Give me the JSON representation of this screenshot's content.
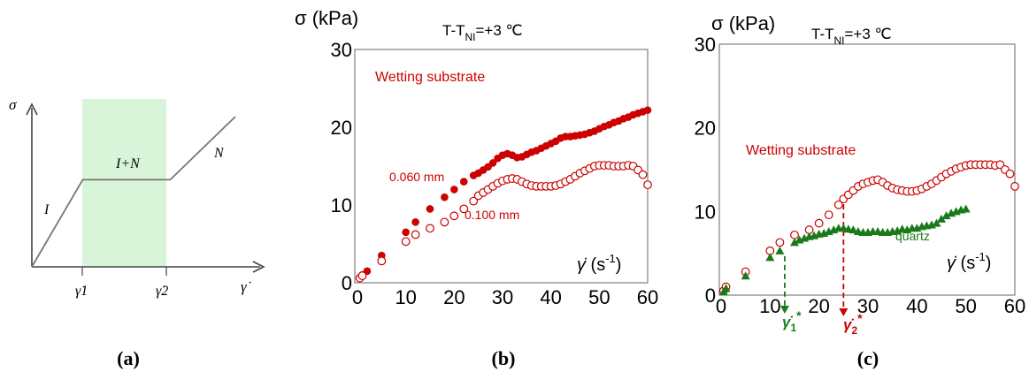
{
  "panel_labels": [
    "(a)",
    "(b)",
    "(c)"
  ],
  "chart_data": [
    {
      "id": "a",
      "type": "line",
      "ylabel": "σ",
      "xlabel": "γ̇",
      "regions": [
        {
          "label": "I",
          "x": [
            0,
            0.25
          ]
        },
        {
          "label": "I+N",
          "x": [
            0.25,
            0.68
          ]
        },
        {
          "label": "N",
          "x": [
            0.68,
            1
          ]
        }
      ],
      "tick_labels": [
        "γ̇1",
        "γ̇2"
      ],
      "highlight_color": "#d9f5d9",
      "series": [
        {
          "values": [
            [
              0,
              0
            ],
            [
              0.25,
              0.58
            ],
            [
              0.68,
              0.58
            ],
            [
              1,
              1
            ]
          ]
        }
      ]
    },
    {
      "id": "b",
      "type": "scatter",
      "ylabel": "σ (kPa)",
      "xlabel": "γ̇ (s⁻¹)",
      "header": "T-T_NI=+3 ℃",
      "xlim": [
        0,
        60
      ],
      "ylim": [
        0,
        30
      ],
      "xticks": [
        0,
        10,
        20,
        30,
        40,
        50,
        60
      ],
      "yticks": [
        0,
        10,
        20,
        30
      ],
      "legend_title": "Wetting substrate",
      "annotations": [
        "0.060 mm",
        "0.100 mm"
      ],
      "series": [
        {
          "name": "0.060 mm",
          "marker": "filled-circle",
          "color": "#cc0000",
          "points": [
            [
              1,
              1.0
            ],
            [
              2,
              1.5
            ],
            [
              5,
              3.5
            ],
            [
              10,
              6.5
            ],
            [
              12,
              7.8
            ],
            [
              15,
              9.5
            ],
            [
              18,
              11
            ],
            [
              20,
              12
            ],
            [
              22,
              13
            ],
            [
              24,
              13.8
            ],
            [
              25,
              14.1
            ],
            [
              26,
              14.5
            ],
            [
              27,
              14.9
            ],
            [
              28,
              15.4
            ],
            [
              29,
              16.0
            ],
            [
              30,
              16.4
            ],
            [
              31,
              16.6
            ],
            [
              32,
              16.4
            ],
            [
              33,
              16.1
            ],
            [
              34,
              16.2
            ],
            [
              35,
              16.5
            ],
            [
              36,
              16.8
            ],
            [
              37,
              17.0
            ],
            [
              38,
              17.3
            ],
            [
              39,
              17.6
            ],
            [
              40,
              17.9
            ],
            [
              41,
              18.2
            ],
            [
              42,
              18.6
            ],
            [
              43,
              18.8
            ],
            [
              44,
              18.8
            ],
            [
              45,
              18.9
            ],
            [
              46,
              19.0
            ],
            [
              47,
              19.1
            ],
            [
              48,
              19.3
            ],
            [
              49,
              19.5
            ],
            [
              50,
              19.8
            ],
            [
              51,
              20.1
            ],
            [
              52,
              20.3
            ],
            [
              53,
              20.6
            ],
            [
              54,
              20.8
            ],
            [
              55,
              21.1
            ],
            [
              56,
              21.3
            ],
            [
              57,
              21.6
            ],
            [
              58,
              21.8
            ],
            [
              59,
              22.0
            ],
            [
              60,
              22.2
            ]
          ]
        },
        {
          "name": "0.100 mm",
          "marker": "open-circle",
          "color": "#cc0000",
          "points": [
            [
              0.5,
              0.6
            ],
            [
              1,
              0.9
            ],
            [
              5,
              2.8
            ],
            [
              10,
              5.3
            ],
            [
              12,
              6.2
            ],
            [
              15,
              7.0
            ],
            [
              18,
              7.8
            ],
            [
              20,
              8.6
            ],
            [
              22,
              9.5
            ],
            [
              24,
              10.5
            ],
            [
              25,
              11.2
            ],
            [
              26,
              11.6
            ],
            [
              27,
              12.0
            ],
            [
              28,
              12.4
            ],
            [
              29,
              12.8
            ],
            [
              30,
              13.1
            ],
            [
              31,
              13.3
            ],
            [
              32,
              13.4
            ],
            [
              33,
              13.3
            ],
            [
              34,
              13.0
            ],
            [
              35,
              12.7
            ],
            [
              36,
              12.5
            ],
            [
              37,
              12.4
            ],
            [
              38,
              12.4
            ],
            [
              39,
              12.4
            ],
            [
              40,
              12.4
            ],
            [
              41,
              12.5
            ],
            [
              42,
              12.7
            ],
            [
              43,
              13.0
            ],
            [
              44,
              13.3
            ],
            [
              45,
              13.7
            ],
            [
              46,
              14.1
            ],
            [
              47,
              14.4
            ],
            [
              48,
              14.7
            ],
            [
              49,
              15.0
            ],
            [
              50,
              15.1
            ],
            [
              51,
              15.1
            ],
            [
              52,
              15.1
            ],
            [
              53,
              15.0
            ],
            [
              54,
              15.0
            ],
            [
              55,
              15.0
            ],
            [
              56,
              15.1
            ],
            [
              57,
              15.0
            ],
            [
              58,
              14.5
            ],
            [
              59,
              13.9
            ],
            [
              60,
              12.6
            ]
          ]
        }
      ]
    },
    {
      "id": "c",
      "type": "scatter",
      "ylabel": "σ (kPa)",
      "xlabel": "γ̇ (s⁻¹)",
      "header": "T-T_NI=+3 ℃",
      "xlim": [
        0,
        60
      ],
      "ylim": [
        0,
        30
      ],
      "xticks": [
        0,
        10,
        20,
        30,
        40,
        50,
        60
      ],
      "yticks": [
        0,
        10,
        20,
        30
      ],
      "annotations": [
        "Wetting substrate",
        "quartz"
      ],
      "critical_rates": [
        {
          "label": "γ̇1*",
          "x": 13,
          "color": "#1a7a1a"
        },
        {
          "label": "γ̇2*",
          "x": 25,
          "color": "#cc0000"
        }
      ],
      "series": [
        {
          "name": "Wetting substrate",
          "marker": "open-circle",
          "color": "#cc0000",
          "points": [
            [
              0.5,
              0.5
            ],
            [
              1,
              1.0
            ],
            [
              5,
              2.8
            ],
            [
              10,
              5.3
            ],
            [
              12,
              6.3
            ],
            [
              15,
              7.2
            ],
            [
              18,
              7.8
            ],
            [
              20,
              8.6
            ],
            [
              22,
              9.6
            ],
            [
              24,
              10.8
            ],
            [
              25,
              11.5
            ],
            [
              26,
              12.0
            ],
            [
              27,
              12.5
            ],
            [
              28,
              13.0
            ],
            [
              29,
              13.3
            ],
            [
              30,
              13.5
            ],
            [
              31,
              13.7
            ],
            [
              32,
              13.8
            ],
            [
              33,
              13.5
            ],
            [
              34,
              13.1
            ],
            [
              35,
              12.8
            ],
            [
              36,
              12.6
            ],
            [
              37,
              12.5
            ],
            [
              38,
              12.4
            ],
            [
              39,
              12.4
            ],
            [
              40,
              12.5
            ],
            [
              41,
              12.7
            ],
            [
              42,
              13.0
            ],
            [
              43,
              13.3
            ],
            [
              44,
              13.7
            ],
            [
              45,
              14.1
            ],
            [
              46,
              14.5
            ],
            [
              47,
              14.8
            ],
            [
              48,
              15.1
            ],
            [
              49,
              15.3
            ],
            [
              50,
              15.5
            ],
            [
              51,
              15.6
            ],
            [
              52,
              15.6
            ],
            [
              53,
              15.6
            ],
            [
              54,
              15.6
            ],
            [
              55,
              15.6
            ],
            [
              56,
              15.5
            ],
            [
              57,
              15.6
            ],
            [
              58,
              15.0
            ],
            [
              59,
              14.5
            ],
            [
              60,
              13.0
            ]
          ]
        },
        {
          "name": "quartz",
          "marker": "filled-triangle",
          "color": "#1a7a1a",
          "points": [
            [
              0.5,
              0.4
            ],
            [
              1,
              0.8
            ],
            [
              5,
              2.3
            ],
            [
              10,
              4.5
            ],
            [
              12,
              5.3
            ],
            [
              15,
              6.3
            ],
            [
              16,
              6.6
            ],
            [
              17,
              6.8
            ],
            [
              18,
              7.0
            ],
            [
              19,
              7.1
            ],
            [
              20,
              7.3
            ],
            [
              21,
              7.4
            ],
            [
              22,
              7.6
            ],
            [
              23,
              7.8
            ],
            [
              24,
              8.0
            ],
            [
              25,
              8.0
            ],
            [
              26,
              7.9
            ],
            [
              27,
              7.8
            ],
            [
              28,
              7.6
            ],
            [
              29,
              7.5
            ],
            [
              30,
              7.5
            ],
            [
              31,
              7.6
            ],
            [
              32,
              7.6
            ],
            [
              33,
              7.5
            ],
            [
              34,
              7.5
            ],
            [
              35,
              7.6
            ],
            [
              36,
              7.7
            ],
            [
              37,
              7.9
            ],
            [
              38,
              7.8
            ],
            [
              39,
              8.0
            ],
            [
              40,
              8.0
            ],
            [
              41,
              8.2
            ],
            [
              42,
              8.3
            ],
            [
              43,
              8.4
            ],
            [
              44,
              8.6
            ],
            [
              45,
              9.1
            ],
            [
              46,
              9.5
            ],
            [
              47,
              9.8
            ],
            [
              48,
              10.0
            ],
            [
              49,
              10.2
            ],
            [
              50,
              10.3
            ]
          ]
        }
      ]
    }
  ]
}
